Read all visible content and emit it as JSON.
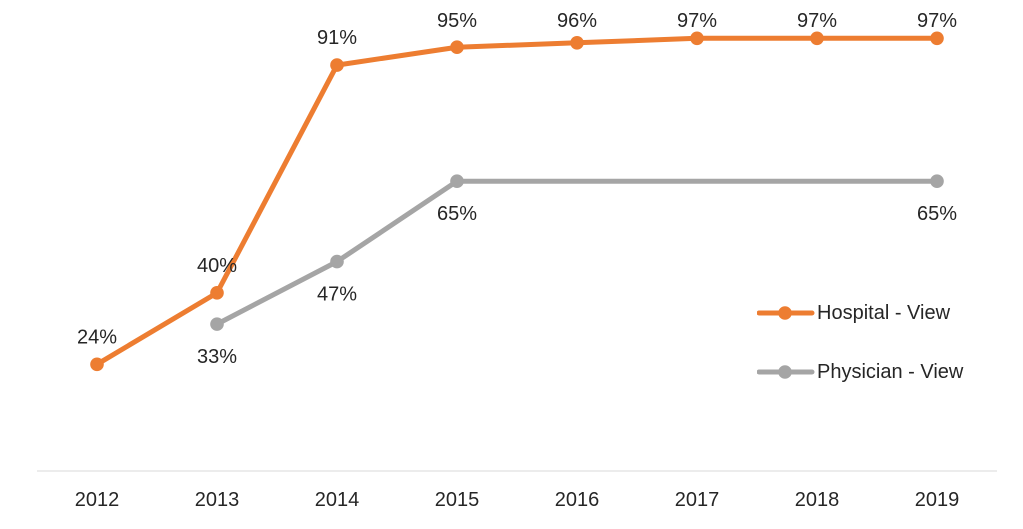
{
  "chart_data": {
    "type": "line",
    "title": "",
    "xlabel": "",
    "ylabel": "",
    "categories": [
      "2012",
      "2013",
      "2014",
      "2015",
      "2016",
      "2017",
      "2018",
      "2019"
    ],
    "series": [
      {
        "name": "Hospital - View",
        "color": "#ED7D31",
        "values": [
          24,
          40,
          91,
          95,
          96,
          97,
          97,
          97
        ],
        "data_labels": [
          "24%",
          "40%",
          "91%",
          "95%",
          "96%",
          "97%",
          "97%",
          "97%"
        ],
        "label_position": "above"
      },
      {
        "name": "Physician - View",
        "color": "#A5A5A5",
        "values": [
          null,
          33,
          47,
          65,
          null,
          null,
          null,
          65
        ],
        "data_labels": [
          null,
          "33%",
          "47%",
          "65%",
          null,
          null,
          null,
          "65%"
        ],
        "label_position": "below"
      }
    ],
    "ylim": [
      0,
      100
    ],
    "grid": false,
    "y_axis_visible": false,
    "legend_position": "inside-right-middle",
    "colors": {
      "axis_line": "#D9D9D9",
      "text": "#262626",
      "background": "#FFFFFF"
    }
  }
}
